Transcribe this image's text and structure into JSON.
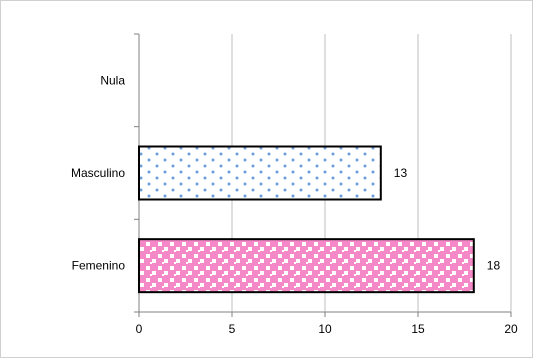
{
  "chart_data": {
    "type": "bar",
    "orientation": "horizontal",
    "categories": [
      "Nula",
      "Masculino",
      "Femenino"
    ],
    "values": [
      0,
      13,
      18
    ],
    "data_labels": [
      "",
      "13",
      "18"
    ],
    "xlim": [
      0,
      20
    ],
    "x_ticks": [
      0,
      5,
      10,
      15,
      20
    ],
    "x_tick_labels": [
      "0",
      "5",
      "10",
      "15",
      "20"
    ],
    "grid": "vertical",
    "legend": "none",
    "bar_styles": [
      {
        "fill": "#ffffff",
        "pattern": "none"
      },
      {
        "fill": "#ffffff",
        "pattern": "dots",
        "pattern_color": "#6ca0dc"
      },
      {
        "fill": "#f589c8",
        "pattern": "confetti",
        "pattern_color": "#ffffff"
      }
    ],
    "bar_outline": "#000000",
    "grid_color": "#bfbfbf"
  }
}
